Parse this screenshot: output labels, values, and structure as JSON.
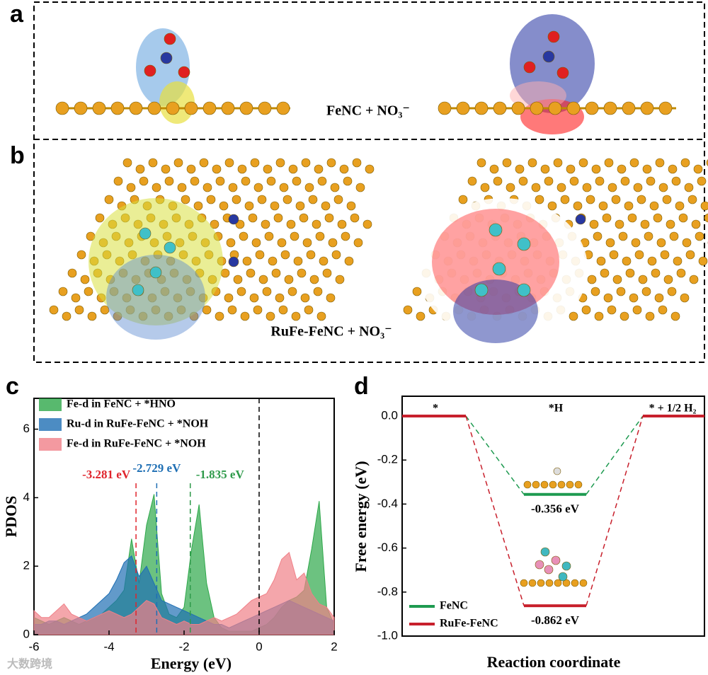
{
  "panels": {
    "a": {
      "label": "a",
      "caption": "FeNC + NO₃⁻"
    },
    "b": {
      "label": "b",
      "caption": "RuFe-FeNC + NO₃⁻"
    },
    "c": {
      "label": "c"
    },
    "d": {
      "label": "d"
    }
  },
  "watermark": "大数跨境",
  "chart_data": [
    {
      "type": "area",
      "ylabel": "PDOS",
      "xlabel": "Energy (eV)",
      "xlim": [
        -6,
        2
      ],
      "xticks": [
        -6,
        -4,
        -2,
        0,
        2
      ],
      "ylim": [
        0,
        6.9
      ],
      "yticks": [
        0,
        2,
        4,
        6
      ],
      "x": [
        -6,
        -5.8,
        -5.6,
        -5.4,
        -5.2,
        -5,
        -4.8,
        -4.6,
        -4.4,
        -4.2,
        -4,
        -3.8,
        -3.6,
        -3.4,
        -3.2,
        -3,
        -2.8,
        -2.6,
        -2.4,
        -2.2,
        -2,
        -1.8,
        -1.6,
        -1.4,
        -1.2,
        -1,
        -0.8,
        -0.6,
        -0.4,
        -0.2,
        0,
        0.2,
        0.4,
        0.6,
        0.8,
        1,
        1.2,
        1.4,
        1.6,
        1.8,
        2
      ],
      "series": [
        {
          "name": "Fe-d in FeNC + *HNO",
          "color": "#2ea84a",
          "values": [
            0.5,
            0.4,
            0.3,
            0.4,
            0.5,
            0.4,
            0.3,
            0.4,
            0.5,
            0.6,
            0.8,
            1.0,
            1.3,
            2.8,
            1.5,
            3.2,
            4.1,
            1.2,
            0.6,
            0.5,
            0.8,
            2.5,
            3.8,
            1.5,
            0.5,
            0.2,
            0.1,
            0.1,
            0.1,
            0.1,
            0.2,
            0.3,
            0.5,
            0.8,
            1.0,
            1.1,
            1.3,
            2.5,
            3.9,
            0.8,
            0.3
          ]
        },
        {
          "name": "Ru-d in RuFe-FeNC + *NOH",
          "color": "#1f6fb4",
          "values": [
            0.3,
            0.3,
            0.4,
            0.4,
            0.3,
            0.4,
            0.5,
            0.6,
            0.8,
            1.0,
            1.2,
            1.6,
            2.1,
            2.3,
            1.7,
            2.0,
            1.5,
            1.0,
            0.9,
            0.8,
            0.7,
            0.6,
            0.5,
            0.4,
            0.3,
            0.3,
            0.2,
            0.3,
            0.4,
            0.5,
            0.6,
            0.7,
            0.8,
            0.9,
            1.0,
            0.9,
            0.8,
            0.7,
            0.6,
            0.5,
            0.4
          ]
        },
        {
          "name": "Fe-d in RuFe-FeNC + *NOH",
          "color": "#f08088",
          "values": [
            0.7,
            0.5,
            0.5,
            0.7,
            0.9,
            0.6,
            0.5,
            0.4,
            0.5,
            0.6,
            0.7,
            0.6,
            0.5,
            0.6,
            0.8,
            1.0,
            0.9,
            0.5,
            0.4,
            0.3,
            0.4,
            0.3,
            0.3,
            0.4,
            0.5,
            0.4,
            0.5,
            0.6,
            0.8,
            1.0,
            1.1,
            1.2,
            1.6,
            2.2,
            2.4,
            1.6,
            1.8,
            1.2,
            0.9,
            0.8,
            0.5
          ]
        }
      ],
      "annotations": [
        {
          "x": -3.281,
          "label": "-3.281 eV",
          "color": "#e0242c"
        },
        {
          "x": -2.729,
          "label": "-2.729 eV",
          "color": "#1f6fb4"
        },
        {
          "x": -1.835,
          "label": "-1.835 eV",
          "color": "#2e9a4a"
        },
        {
          "x": 0,
          "color": "#000000"
        }
      ]
    },
    {
      "type": "energy",
      "ylabel": "Free energy (eV)",
      "xlabel": "Reaction coordinate",
      "categories": [
        "*",
        "*H",
        "* + 1/2 H₂"
      ],
      "ylim": [
        -1.0,
        0.09
      ],
      "yticks": [
        {
          "value": 0,
          "label": "0.0"
        },
        -0.2,
        -0.4,
        -0.6,
        -0.8,
        {
          "value": -1,
          "label": "-1.0"
        }
      ],
      "series": [
        {
          "name": "FeNC",
          "color": "#1e9a50",
          "values": [
            0,
            -0.356,
            0
          ],
          "value_labels": [
            null,
            "-0.356 eV",
            null
          ]
        },
        {
          "name": "RuFe-FeNC",
          "color": "#c8202c",
          "values": [
            0,
            -0.862,
            0
          ],
          "value_labels": [
            null,
            "-0.862 eV",
            null
          ]
        }
      ]
    }
  ]
}
